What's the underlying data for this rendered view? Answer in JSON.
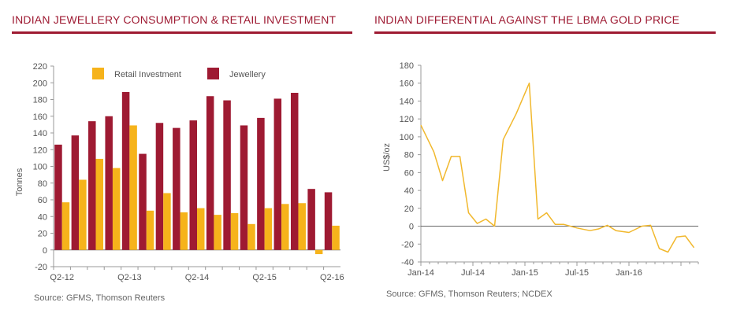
{
  "colors": {
    "accent": "#9e1a32",
    "retail": "#f6b31b",
    "jewellery": "#9e1a32",
    "line": "#f1b82d",
    "axis": "#999999",
    "text": "#555555"
  },
  "chart_data": [
    {
      "type": "bar",
      "title": "INDIAN JEWELLERY CONSUMPTION & RETAIL INVESTMENT",
      "ylabel": "Tonnes",
      "ylim": [
        -20,
        220
      ],
      "yticks": [
        -20,
        0,
        20,
        40,
        60,
        80,
        100,
        120,
        140,
        160,
        180,
        200,
        220
      ],
      "xtick_labels": [
        {
          "index": 0,
          "label": "Q2-12"
        },
        {
          "index": 4,
          "label": "Q2-13"
        },
        {
          "index": 8,
          "label": "Q2-14"
        },
        {
          "index": 12,
          "label": "Q2-15"
        },
        {
          "index": 16,
          "label": "Q2-16"
        }
      ],
      "legend_position": "top",
      "series": [
        {
          "name": "Retail Investment",
          "color": "#f6b31b",
          "values": [
            57,
            84,
            109,
            98,
            149,
            47,
            68,
            45,
            50,
            42,
            44,
            31,
            50,
            55,
            56,
            -5,
            29
          ]
        },
        {
          "name": "Jewellery",
          "color": "#9e1a32",
          "values": [
            126,
            137,
            154,
            160,
            189,
            115,
            152,
            146,
            155,
            184,
            179,
            149,
            158,
            181,
            188,
            73,
            69
          ]
        }
      ],
      "source": "Source: GFMS, Thomson Reuters"
    },
    {
      "type": "line",
      "title": "INDIAN DIFFERENTIAL AGAINST THE LBMA GOLD PRICE",
      "ylabel": "US$/oz",
      "ylim": [
        -40,
        180
      ],
      "yticks": [
        -40,
        -20,
        0,
        20,
        40,
        60,
        80,
        100,
        120,
        140,
        160,
        180
      ],
      "xtick_labels": [
        {
          "month": 0,
          "label": "Jan-14"
        },
        {
          "month": 6,
          "label": "Jul-14"
        },
        {
          "month": 12,
          "label": "Jan-15"
        },
        {
          "month": 18,
          "label": "Jul-15"
        },
        {
          "month": 24,
          "label": "Jan-16"
        }
      ],
      "series": [
        {
          "name": "",
          "color": "#f1b82d",
          "x": [
            0,
            1.5,
            2.5,
            3.5,
            4.5,
            5.5,
            6.5,
            7.5,
            8.5,
            9.5,
            11,
            12.5,
            13.5,
            14.5,
            15.5,
            16.5,
            18,
            19.5,
            20.5,
            21.5,
            22.5,
            24,
            25.5,
            26.5,
            27.5,
            28.5,
            29.5,
            30.5,
            31.5
          ],
          "y": [
            113,
            83,
            51,
            78,
            78,
            15,
            3,
            8,
            0,
            97,
            126,
            160,
            8,
            15,
            2,
            2,
            -2,
            -5,
            -3,
            1,
            -5,
            -7,
            0,
            1,
            -25,
            -29,
            -12,
            -11,
            -24
          ]
        }
      ],
      "source": "Source: GFMS, Thomson Reuters; NCDEX"
    }
  ]
}
